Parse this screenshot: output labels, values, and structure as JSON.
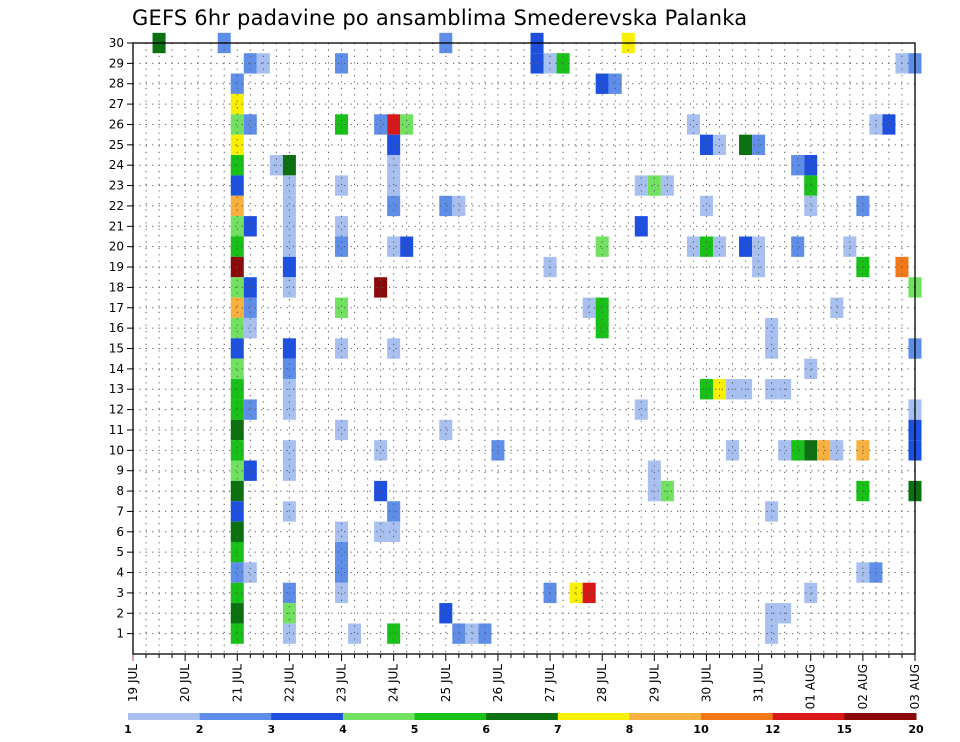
{
  "chart_data": {
    "type": "heatmap",
    "title": "GEFS 6hr padavine po ansamblima Smederevska Palanka",
    "xlabel": "",
    "ylabel": "",
    "grid": true,
    "x_tick_labels": [
      "19 JUL",
      "20 JUL",
      "21 JUL",
      "22 JUL",
      "23 JUL",
      "24 JUL",
      "25 JUL",
      "26 JUL",
      "27 JUL",
      "28 JUL",
      "29 JUL",
      "30 JUL",
      "31 JUL",
      "01 AUG",
      "02 AUG",
      "03 AUG"
    ],
    "y_tick_labels": [
      "1",
      "2",
      "3",
      "4",
      "5",
      "6",
      "7",
      "8",
      "9",
      "10",
      "11",
      "12",
      "13",
      "14",
      "15",
      "16",
      "17",
      "18",
      "19",
      "20",
      "21",
      "22",
      "23",
      "24",
      "25",
      "26",
      "27",
      "28",
      "29",
      "30"
    ],
    "x_range_steps": [
      0,
      60
    ],
    "y_range": [
      0,
      30
    ],
    "steps_per_day": 4,
    "legend": {
      "position": "bottom",
      "labels": [
        "1",
        "2",
        "3",
        "4",
        "5",
        "6",
        "7",
        "8",
        "10",
        "12",
        "15",
        "20"
      ],
      "colors": [
        "#a8c0f0",
        "#5f8ee8",
        "#1e50e0",
        "#72e060",
        "#18c018",
        "#0a7010",
        "#f8f000",
        "#f8b040",
        "#f07818",
        "#d81818",
        "#8a0a0a"
      ]
    },
    "cells": [
      [
        30,
        1,
        7
      ],
      [
        30,
        5,
        2
      ],
      [
        30,
        1,
        24
      ],
      [
        30,
        2,
        31
      ],
      [
        30,
        6,
        38
      ],
      [
        29,
        1,
        9
      ],
      [
        29,
        0,
        10
      ],
      [
        29,
        1,
        16
      ],
      [
        29,
        2,
        31
      ],
      [
        29,
        0,
        32
      ],
      [
        29,
        4,
        33
      ],
      [
        29,
        0,
        59
      ],
      [
        29,
        1,
        60
      ],
      [
        28,
        1,
        8
      ],
      [
        28,
        2,
        36
      ],
      [
        28,
        1,
        37
      ],
      [
        27,
        6,
        8
      ],
      [
        26,
        3,
        8
      ],
      [
        26,
        1,
        9
      ],
      [
        26,
        4,
        16
      ],
      [
        26,
        1,
        19
      ],
      [
        26,
        9,
        20
      ],
      [
        26,
        3,
        21
      ],
      [
        26,
        0,
        43
      ],
      [
        26,
        0,
        57
      ],
      [
        26,
        2,
        58
      ],
      [
        25,
        6,
        8
      ],
      [
        25,
        2,
        20
      ],
      [
        25,
        2,
        44
      ],
      [
        25,
        0,
        45
      ],
      [
        25,
        5,
        47
      ],
      [
        25,
        1,
        48
      ],
      [
        24,
        4,
        8
      ],
      [
        24,
        0,
        11
      ],
      [
        24,
        5,
        12
      ],
      [
        24,
        0,
        20
      ],
      [
        24,
        1,
        51
      ],
      [
        24,
        2,
        52
      ],
      [
        23,
        2,
        8
      ],
      [
        23,
        0,
        12
      ],
      [
        23,
        0,
        16
      ],
      [
        23,
        0,
        20
      ],
      [
        23,
        0,
        39
      ],
      [
        23,
        3,
        40
      ],
      [
        23,
        0,
        41
      ],
      [
        23,
        4,
        52
      ],
      [
        22,
        7,
        8
      ],
      [
        22,
        0,
        12
      ],
      [
        22,
        1,
        20
      ],
      [
        22,
        1,
        24
      ],
      [
        22,
        0,
        25
      ],
      [
        22,
        0,
        44
      ],
      [
        22,
        0,
        52
      ],
      [
        22,
        1,
        56
      ],
      [
        21,
        3,
        8
      ],
      [
        21,
        2,
        9
      ],
      [
        21,
        0,
        12
      ],
      [
        21,
        0,
        16
      ],
      [
        21,
        2,
        39
      ],
      [
        20,
        4,
        8
      ],
      [
        20,
        0,
        12
      ],
      [
        20,
        1,
        16
      ],
      [
        20,
        0,
        20
      ],
      [
        20,
        2,
        21
      ],
      [
        20,
        3,
        36
      ],
      [
        20,
        0,
        43
      ],
      [
        20,
        4,
        44
      ],
      [
        20,
        0,
        45
      ],
      [
        20,
        2,
        47
      ],
      [
        20,
        0,
        48
      ],
      [
        20,
        1,
        51
      ],
      [
        20,
        0,
        55
      ],
      [
        19,
        10,
        8
      ],
      [
        19,
        2,
        12
      ],
      [
        19,
        0,
        32
      ],
      [
        19,
        0,
        48
      ],
      [
        19,
        4,
        56
      ],
      [
        19,
        8,
        59
      ],
      [
        18,
        3,
        8
      ],
      [
        18,
        2,
        9
      ],
      [
        18,
        0,
        12
      ],
      [
        18,
        10,
        19
      ],
      [
        18,
        3,
        60
      ],
      [
        17,
        7,
        8
      ],
      [
        17,
        1,
        9
      ],
      [
        17,
        3,
        16
      ],
      [
        17,
        0,
        35
      ],
      [
        17,
        4,
        36
      ],
      [
        17,
        0,
        54
      ],
      [
        16,
        3,
        8
      ],
      [
        16,
        0,
        9
      ],
      [
        16,
        4,
        36
      ],
      [
        16,
        0,
        49
      ],
      [
        15,
        2,
        8
      ],
      [
        15,
        2,
        12
      ],
      [
        15,
        0,
        16
      ],
      [
        15,
        0,
        20
      ],
      [
        15,
        0,
        49
      ],
      [
        15,
        1,
        60
      ],
      [
        14,
        3,
        8
      ],
      [
        14,
        1,
        12
      ],
      [
        14,
        0,
        52
      ],
      [
        13,
        4,
        8
      ],
      [
        13,
        0,
        12
      ],
      [
        13,
        4,
        44
      ],
      [
        13,
        6,
        45
      ],
      [
        13,
        0,
        46
      ],
      [
        13,
        0,
        47
      ],
      [
        13,
        0,
        49
      ],
      [
        13,
        0,
        50
      ],
      [
        12,
        4,
        8
      ],
      [
        12,
        1,
        9
      ],
      [
        12,
        0,
        12
      ],
      [
        12,
        0,
        39
      ],
      [
        12,
        0,
        60
      ],
      [
        11,
        5,
        8
      ],
      [
        11,
        0,
        16
      ],
      [
        11,
        0,
        24
      ],
      [
        11,
        2,
        60
      ],
      [
        10,
        4,
        8
      ],
      [
        10,
        0,
        12
      ],
      [
        10,
        0,
        19
      ],
      [
        10,
        1,
        28
      ],
      [
        10,
        0,
        46
      ],
      [
        10,
        0,
        50
      ],
      [
        10,
        4,
        51
      ],
      [
        10,
        5,
        52
      ],
      [
        10,
        7,
        53
      ],
      [
        10,
        0,
        54
      ],
      [
        10,
        7,
        56
      ],
      [
        10,
        2,
        60
      ],
      [
        9,
        3,
        8
      ],
      [
        9,
        2,
        9
      ],
      [
        9,
        0,
        12
      ],
      [
        9,
        0,
        40
      ],
      [
        8,
        5,
        8
      ],
      [
        8,
        2,
        19
      ],
      [
        8,
        0,
        40
      ],
      [
        8,
        3,
        41
      ],
      [
        8,
        4,
        56
      ],
      [
        8,
        5,
        60
      ],
      [
        7,
        2,
        8
      ],
      [
        7,
        0,
        12
      ],
      [
        7,
        1,
        20
      ],
      [
        7,
        0,
        49
      ],
      [
        6,
        5,
        8
      ],
      [
        6,
        0,
        16
      ],
      [
        6,
        0,
        19
      ],
      [
        6,
        0,
        20
      ],
      [
        5,
        4,
        8
      ],
      [
        5,
        1,
        16
      ],
      [
        4,
        1,
        8
      ],
      [
        4,
        0,
        9
      ],
      [
        4,
        1,
        16
      ],
      [
        4,
        0,
        56
      ],
      [
        4,
        1,
        57
      ],
      [
        3,
        4,
        8
      ],
      [
        3,
        1,
        12
      ],
      [
        3,
        0,
        16
      ],
      [
        3,
        1,
        32
      ],
      [
        3,
        6,
        34
      ],
      [
        3,
        9,
        35
      ],
      [
        3,
        0,
        52
      ],
      [
        2,
        5,
        8
      ],
      [
        2,
        3,
        12
      ],
      [
        2,
        2,
        24
      ],
      [
        2,
        0,
        49
      ],
      [
        2,
        0,
        50
      ],
      [
        1,
        4,
        8
      ],
      [
        1,
        0,
        12
      ],
      [
        1,
        0,
        17
      ],
      [
        1,
        4,
        20
      ],
      [
        1,
        1,
        25
      ],
      [
        1,
        0,
        26
      ],
      [
        1,
        1,
        27
      ],
      [
        1,
        0,
        49
      ]
    ]
  }
}
